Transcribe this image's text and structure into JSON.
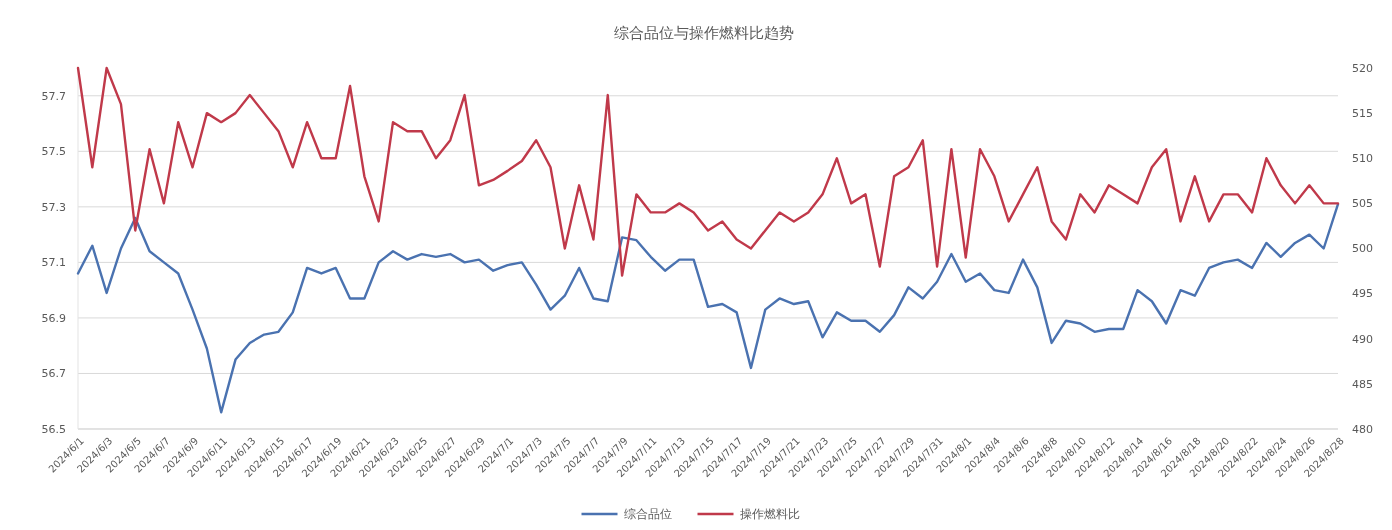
{
  "chart_data": {
    "type": "line",
    "title": "综合品位与操作燃料比趋势",
    "categories": [
      "2024/6/1",
      null,
      "2024/6/3",
      null,
      "2024/6/5",
      null,
      "2024/6/7",
      null,
      "2024/6/9",
      null,
      "2024/6/11",
      null,
      "2024/6/13",
      null,
      "2024/6/15",
      null,
      "2024/6/17",
      null,
      "2024/6/19",
      null,
      "2024/6/21",
      null,
      "2024/6/23",
      null,
      "2024/6/25",
      null,
      "2024/6/27",
      null,
      "2024/6/29",
      null,
      "2024/7/1",
      null,
      "2024/7/3",
      null,
      "2024/7/5",
      null,
      "2024/7/7",
      null,
      "2024/7/9",
      null,
      "2024/7/11",
      null,
      "2024/7/13",
      null,
      "2024/7/15",
      null,
      "2024/7/17",
      null,
      "2024/7/19",
      null,
      "2024/7/21",
      null,
      "2024/7/23",
      null,
      "2024/7/25",
      null,
      "2024/7/27",
      null,
      "2024/7/29",
      null,
      "2024/7/31",
      null,
      "2024/8/1",
      null,
      "2024/8/4",
      null,
      "2024/8/6",
      null,
      "2024/8/8",
      null,
      "2024/8/10",
      null,
      "2024/8/12",
      null,
      "2024/8/14",
      null,
      "2024/8/16",
      null,
      "2024/8/18",
      null,
      "2024/8/20",
      null,
      "2024/8/22",
      null,
      "2024/8/24",
      null,
      "2024/8/26",
      null,
      "2024/8/28"
    ],
    "series": [
      {
        "name": "综合品位",
        "color": "#4a72b0",
        "values": [
          57.06,
          57.16,
          56.99,
          57.15,
          57.26,
          57.14,
          57.1,
          57.06,
          56.93,
          56.79,
          56.56,
          56.75,
          56.81,
          56.84,
          56.85,
          56.92,
          57.08,
          57.06,
          57.08,
          56.97,
          56.97,
          57.1,
          57.14,
          57.11,
          57.13,
          57.12,
          57.13,
          57.1,
          57.11,
          57.07,
          57.09,
          57.1,
          57.02,
          56.93,
          56.98,
          57.08,
          56.97,
          56.96,
          57.19,
          57.18,
          57.12,
          57.07,
          57.11,
          57.11,
          56.94,
          56.95,
          56.92,
          56.72,
          56.93,
          56.97,
          56.95,
          56.96,
          56.83,
          56.92,
          56.89,
          56.89,
          56.85,
          56.91,
          57.01,
          56.97,
          57.03,
          57.13,
          57.03,
          57.06,
          57.0,
          56.99,
          57.11,
          57.01,
          56.81,
          56.89,
          56.88,
          56.85,
          56.86,
          56.86,
          57.0,
          56.96,
          56.88,
          57.0,
          56.98,
          57.08,
          57.1,
          57.11,
          57.08,
          57.17,
          57.12,
          57.17,
          57.2,
          57.15,
          57.31
        ]
      },
      {
        "name": "操作燃料比",
        "color": "#c0394a",
        "axis": "y2",
        "values": [
          520,
          509,
          520,
          516,
          502,
          511,
          505,
          514,
          509,
          515,
          514,
          515,
          517,
          515,
          513,
          509,
          514,
          510,
          510,
          518,
          508,
          503,
          514,
          513,
          513,
          510,
          512,
          517,
          507,
          507.6,
          508.6,
          509.7,
          512,
          509,
          500,
          507,
          501,
          517,
          497,
          506,
          504,
          504,
          505,
          504,
          502,
          503,
          501,
          500,
          502,
          504,
          503,
          504,
          506,
          510,
          505,
          506,
          498,
          508,
          509,
          512,
          498,
          511,
          499,
          511,
          508,
          503,
          506,
          509,
          503,
          501,
          506,
          504,
          507,
          506,
          505,
          509,
          511,
          503,
          508,
          503,
          506,
          506,
          504,
          510,
          507,
          505,
          507,
          505,
          505
        ]
      }
    ],
    "ylim": [
      56.5,
      57.8
    ],
    "yticks": [
      56.5,
      56.7,
      56.9,
      57.1,
      57.3,
      57.5,
      57.7
    ],
    "y2lim": [
      480,
      520
    ],
    "y2ticks": [
      480,
      485,
      490,
      495,
      500,
      505,
      510,
      515,
      520
    ],
    "grid": "y",
    "legend": "bottom"
  }
}
